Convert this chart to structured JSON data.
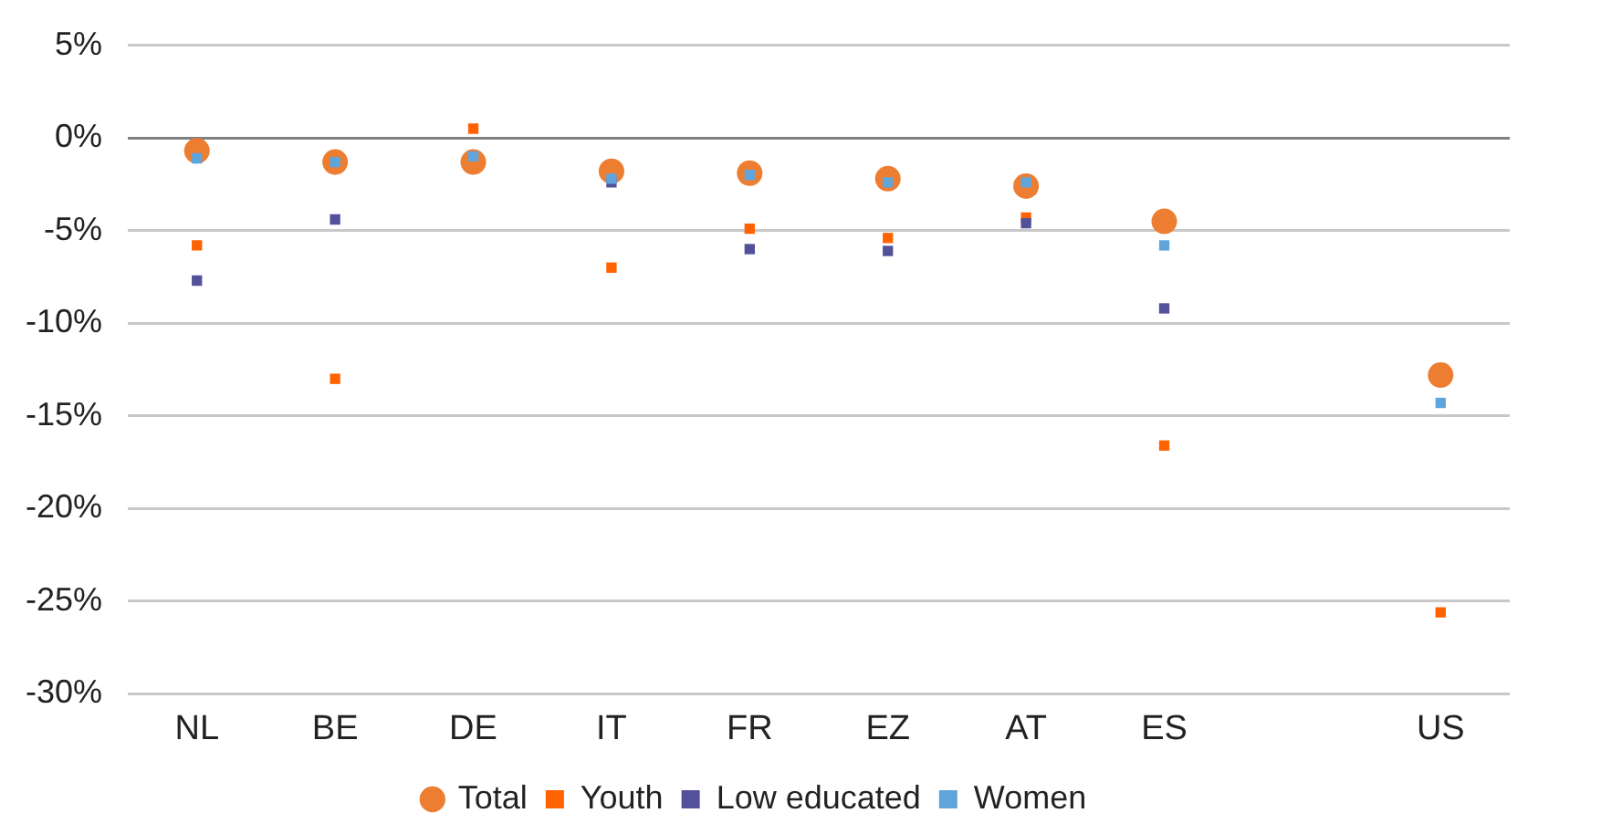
{
  "chart_data": {
    "type": "scatter",
    "categories": [
      "NL",
      "BE",
      "DE",
      "IT",
      "FR",
      "EZ",
      "AT",
      "ES",
      null,
      "US"
    ],
    "series": [
      {
        "name": "Total",
        "color": "#ed7d31",
        "marker": "circle",
        "values": [
          -0.7,
          -1.3,
          -1.3,
          -1.8,
          -1.9,
          -2.2,
          -2.6,
          -4.5,
          null,
          -12.8
        ]
      },
      {
        "name": "Youth",
        "color": "#ff6200",
        "marker": "square",
        "values": [
          -5.8,
          -13.0,
          0.5,
          -7.0,
          -4.9,
          -5.4,
          -4.3,
          -16.6,
          null,
          -25.6
        ]
      },
      {
        "name": "Low educated",
        "color": "#525199",
        "marker": "square",
        "values": [
          -7.7,
          -4.4,
          null,
          -2.4,
          -6.0,
          -6.1,
          -4.6,
          -9.2,
          null,
          null
        ]
      },
      {
        "name": "Women",
        "color": "#5fa5dc",
        "marker": "square",
        "values": [
          -1.1,
          -1.3,
          -1.0,
          -2.2,
          -2.0,
          -2.4,
          -2.4,
          -5.8,
          null,
          -14.3
        ]
      }
    ],
    "ylim": [
      -30,
      5
    ],
    "yticks": [
      {
        "value": -30,
        "label": "-30%"
      },
      {
        "value": -25,
        "label": "-25%"
      },
      {
        "value": -20,
        "label": "-20%"
      },
      {
        "value": -15,
        "label": "-15%"
      },
      {
        "value": -10,
        "label": "-10%"
      },
      {
        "value": -5,
        "label": "-5%"
      },
      {
        "value": 0,
        "label": "0%"
      },
      {
        "value": 5,
        "label": "5%"
      }
    ],
    "grid": "y",
    "legend": "bottom"
  }
}
